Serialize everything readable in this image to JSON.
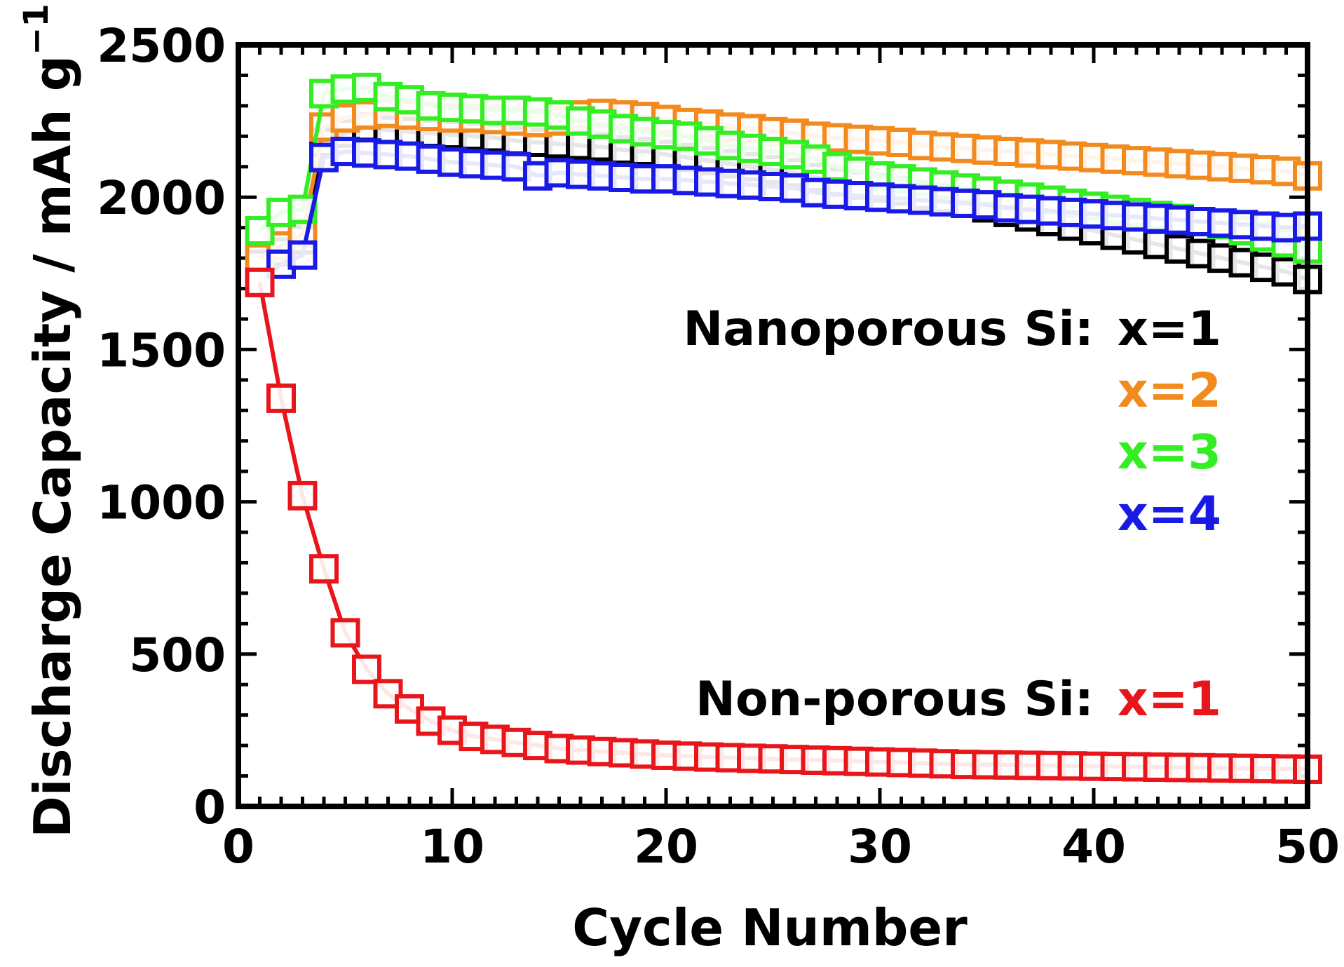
{
  "chart_data": {
    "type": "line",
    "xlabel": "Cycle Number",
    "ylabel": "Discharge Capacity / mAh g",
    "ylabel_superscript": "−1",
    "xlim": [
      0,
      50
    ],
    "ylim": [
      0,
      2500
    ],
    "x_ticks": [
      "0",
      "10",
      "20",
      "30",
      "40",
      "50"
    ],
    "y_ticks": [
      "0",
      "500",
      "1000",
      "1500",
      "2000",
      "2500"
    ],
    "legend": {
      "nanoporous_label": "Nanoporous Si:",
      "nonporous_label": "Non-porous Si:",
      "entries": [
        "x=1",
        "x=2",
        "x=3",
        "x=4",
        "x=1"
      ]
    },
    "series": [
      {
        "name": "Nanoporous Si x=1",
        "label": "x=1",
        "color": "#000000",
        "x": [
          1,
          2,
          3,
          4,
          5,
          6,
          7,
          8,
          9,
          10,
          11,
          12,
          13,
          14,
          15,
          16,
          17,
          18,
          19,
          20,
          21,
          22,
          23,
          24,
          25,
          26,
          27,
          28,
          29,
          30,
          31,
          32,
          33,
          34,
          35,
          36,
          37,
          38,
          39,
          40,
          41,
          42,
          43,
          44,
          45,
          46,
          47,
          48,
          49,
          50
        ],
        "values": [
          1780,
          1820,
          1860,
          2180,
          2210,
          2230,
          2220,
          2215,
          2210,
          2205,
          2200,
          2195,
          2185,
          2180,
          2175,
          2170,
          2165,
          2155,
          2150,
          2140,
          2130,
          2120,
          2110,
          2100,
          2090,
          2080,
          2065,
          2050,
          2040,
          2030,
          2020,
          2005,
          1995,
          1980,
          1965,
          1950,
          1935,
          1920,
          1905,
          1890,
          1875,
          1860,
          1845,
          1830,
          1815,
          1800,
          1785,
          1770,
          1755,
          1730
        ]
      },
      {
        "name": "Nanoporous Si x=2",
        "label": "x=2",
        "color": "#f28a1e",
        "x": [
          1,
          2,
          3,
          4,
          5,
          6,
          7,
          8,
          9,
          10,
          11,
          12,
          13,
          14,
          15,
          16,
          17,
          18,
          19,
          20,
          21,
          22,
          23,
          24,
          25,
          26,
          27,
          28,
          29,
          30,
          31,
          32,
          33,
          34,
          35,
          36,
          37,
          38,
          39,
          40,
          41,
          42,
          43,
          44,
          45,
          46,
          47,
          48,
          49,
          50
        ],
        "values": [
          1800,
          1840,
          1880,
          2230,
          2260,
          2270,
          2275,
          2270,
          2265,
          2260,
          2260,
          2255,
          2250,
          2245,
          2250,
          2270,
          2275,
          2270,
          2265,
          2255,
          2245,
          2240,
          2230,
          2225,
          2215,
          2210,
          2200,
          2195,
          2190,
          2185,
          2180,
          2170,
          2165,
          2160,
          2155,
          2150,
          2145,
          2140,
          2135,
          2130,
          2125,
          2120,
          2115,
          2110,
          2105,
          2100,
          2095,
          2090,
          2085,
          2070
        ]
      },
      {
        "name": "Nanoporous Si x=3",
        "label": "x=3",
        "color": "#33ee22",
        "x": [
          1,
          2,
          3,
          4,
          5,
          6,
          7,
          8,
          9,
          10,
          11,
          12,
          13,
          14,
          15,
          16,
          17,
          18,
          19,
          20,
          21,
          22,
          23,
          24,
          25,
          26,
          27,
          28,
          29,
          30,
          31,
          32,
          33,
          34,
          35,
          36,
          37,
          38,
          39,
          40,
          41,
          42,
          43,
          44,
          45,
          46,
          47,
          48,
          49,
          50
        ],
        "values": [
          1890,
          1950,
          1960,
          2340,
          2355,
          2360,
          2330,
          2320,
          2300,
          2295,
          2290,
          2285,
          2285,
          2280,
          2270,
          2250,
          2240,
          2225,
          2215,
          2205,
          2200,
          2185,
          2170,
          2160,
          2150,
          2140,
          2125,
          2100,
          2085,
          2070,
          2060,
          2050,
          2040,
          2030,
          2020,
          2010,
          2000,
          1990,
          1980,
          1970,
          1960,
          1950,
          1940,
          1930,
          1920,
          1910,
          1890,
          1870,
          1850,
          1830
        ]
      },
      {
        "name": "Nanoporous Si x=4",
        "label": "x=4",
        "color": "#1a1ae6",
        "x": [
          1,
          2,
          3,
          4,
          5,
          6,
          7,
          8,
          9,
          10,
          11,
          12,
          13,
          14,
          15,
          16,
          17,
          18,
          19,
          20,
          21,
          22,
          23,
          24,
          25,
          26,
          27,
          28,
          29,
          30,
          31,
          32,
          33,
          34,
          35,
          36,
          37,
          38,
          39,
          40,
          41,
          42,
          43,
          44,
          45,
          46,
          47,
          48,
          49,
          50
        ],
        "values": [
          1720,
          1780,
          1810,
          2130,
          2150,
          2145,
          2140,
          2135,
          2125,
          2115,
          2110,
          2105,
          2100,
          2070,
          2080,
          2075,
          2070,
          2065,
          2060,
          2060,
          2055,
          2050,
          2045,
          2040,
          2035,
          2030,
          2015,
          2010,
          2005,
          2000,
          1995,
          1990,
          1985,
          1980,
          1975,
          1965,
          1960,
          1955,
          1950,
          1945,
          1940,
          1935,
          1930,
          1925,
          1920,
          1915,
          1910,
          1905,
          1900,
          1905
        ]
      },
      {
        "name": "Non-porous Si x=1",
        "label": "x=1",
        "color": "#e8151b",
        "x": [
          1,
          2,
          3,
          4,
          5,
          6,
          7,
          8,
          9,
          10,
          11,
          12,
          13,
          14,
          15,
          16,
          17,
          18,
          19,
          20,
          21,
          22,
          23,
          24,
          25,
          26,
          27,
          28,
          29,
          30,
          31,
          32,
          33,
          34,
          35,
          36,
          37,
          38,
          39,
          40,
          41,
          42,
          43,
          44,
          45,
          46,
          47,
          48,
          49,
          50
        ],
        "values": [
          1720,
          1340,
          1020,
          780,
          570,
          450,
          370,
          320,
          280,
          250,
          230,
          220,
          210,
          200,
          190,
          185,
          180,
          176,
          172,
          168,
          165,
          162,
          160,
          158,
          156,
          154,
          152,
          150,
          148,
          146,
          144,
          142,
          140,
          138,
          137,
          136,
          135,
          134,
          133,
          132,
          131,
          130,
          129,
          128,
          127,
          126,
          125,
          124,
          123,
          122
        ]
      }
    ]
  }
}
